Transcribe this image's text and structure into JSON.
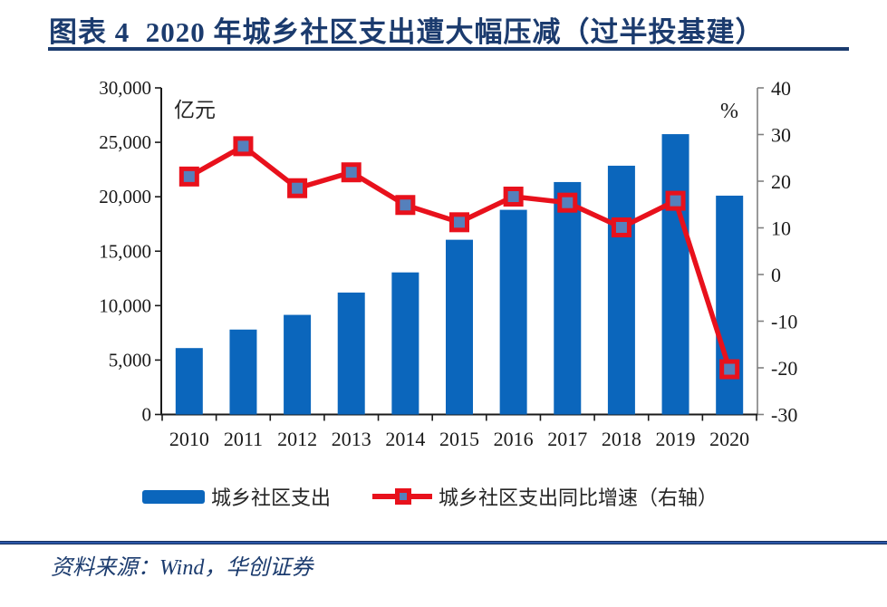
{
  "header": {
    "title": "图表 4  2020 年城乡社区支出遭大幅压减（过半投基建）"
  },
  "legend": [
    {
      "label": "城乡社区支出"
    },
    {
      "label": "城乡社区支出同比增速（右轴）"
    }
  ],
  "footer": {
    "source": "资料来源：Wind，华创证券"
  },
  "colors": {
    "bar_blue": "#0B66BC",
    "line_red": "#E8111C",
    "marker_blue": "#5580BC",
    "navy_accent": "#1B3B6E",
    "right_axis_gray": "#808080"
  },
  "chart_data": {
    "type": "bar",
    "subtype": "combo-bar-line",
    "title": "2020 年城乡社区支出遭大幅压减（过半投基建）",
    "categories": [
      "2010",
      "2011",
      "2012",
      "2013",
      "2014",
      "2015",
      "2016",
      "2017",
      "2018",
      "2019",
      "2020"
    ],
    "series": [
      {
        "name": "城乡社区支出",
        "type": "bar",
        "axis": "left",
        "color": "#0B66BC",
        "values": [
          6100,
          7800,
          9150,
          11200,
          13050,
          16050,
          18800,
          21350,
          22850,
          25750,
          20100
        ]
      },
      {
        "name": "城乡社区支出同比增速（右轴）",
        "type": "line",
        "axis": "right",
        "color": "#E8111C",
        "marker_fill": "#5580BC",
        "values": [
          21.0,
          27.5,
          18.5,
          21.9,
          14.9,
          11.2,
          16.7,
          15.4,
          10.1,
          15.8,
          -20.3
        ]
      }
    ],
    "left_axis": {
      "unit": "亿元",
      "min": 0,
      "max": 30000,
      "tick_values": [
        0,
        5000,
        10000,
        15000,
        20000,
        25000,
        30000
      ],
      "tick_labels": [
        "0",
        "5,000",
        "10,000",
        "15,000",
        "20,000",
        "25,000",
        "30,000"
      ]
    },
    "right_axis": {
      "unit": "%",
      "min": -30,
      "max": 40,
      "tick_values": [
        -30,
        -20,
        -10,
        0,
        10,
        20,
        30,
        40
      ],
      "tick_labels": [
        "-30",
        "-20",
        "-10",
        "0",
        "10",
        "20",
        "30",
        "40"
      ]
    },
    "grid": false,
    "legend_position": "bottom"
  }
}
